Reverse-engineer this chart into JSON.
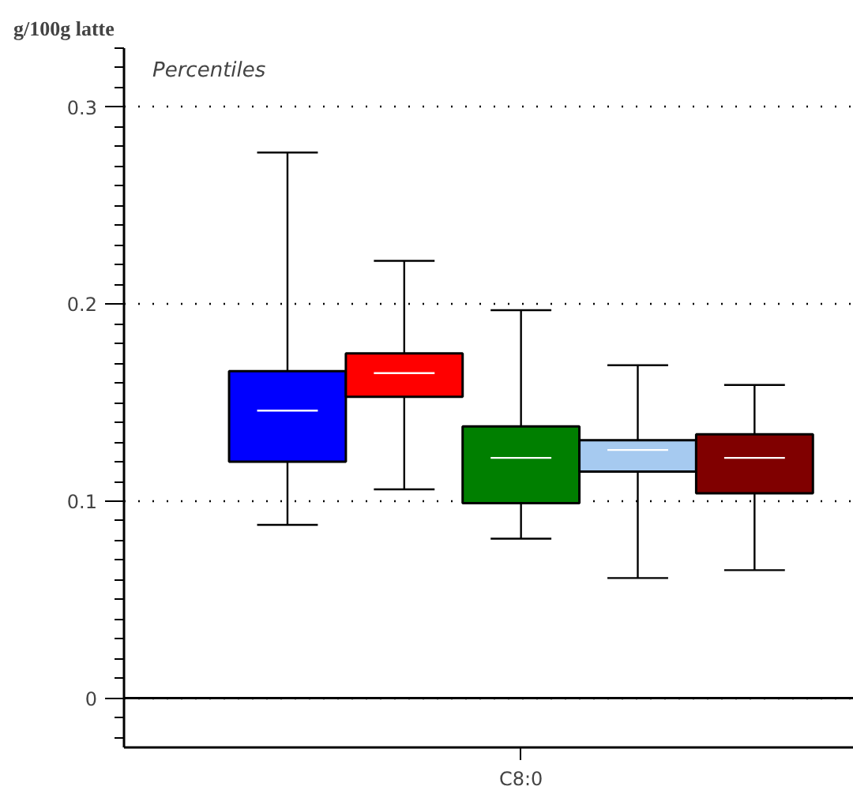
{
  "chart_data": {
    "type": "box",
    "ylabel": "g/100g latte",
    "annotations": [
      "Percentiles"
    ],
    "categories": [
      "C8:0"
    ],
    "series": [
      {
        "color": "#0000ff",
        "boxes": [
          {
            "low": 0.088,
            "q1": 0.12,
            "median": 0.146,
            "q3": 0.166,
            "high": 0.277
          }
        ]
      },
      {
        "color": "#ff0000",
        "boxes": [
          {
            "low": 0.106,
            "q1": 0.153,
            "median": 0.165,
            "q3": 0.175,
            "high": 0.222
          }
        ]
      },
      {
        "color": "#007f00",
        "boxes": [
          {
            "low": 0.081,
            "q1": 0.099,
            "median": 0.122,
            "q3": 0.138,
            "high": 0.197
          }
        ]
      },
      {
        "color": "#a6caf0",
        "boxes": [
          {
            "low": 0.061,
            "q1": 0.115,
            "median": 0.126,
            "q3": 0.131,
            "high": 0.169
          }
        ]
      },
      {
        "color": "#800000",
        "boxes": [
          {
            "low": 0.065,
            "q1": 0.104,
            "median": 0.122,
            "q3": 0.134,
            "high": 0.159
          }
        ]
      }
    ],
    "ylim": [
      -0.025,
      0.33
    ],
    "yticks": [
      0,
      0.1,
      0.2,
      0.3
    ],
    "grid": "y",
    "ref_lines": [
      {
        "axis": "y",
        "value": 0,
        "label": null
      }
    ]
  }
}
